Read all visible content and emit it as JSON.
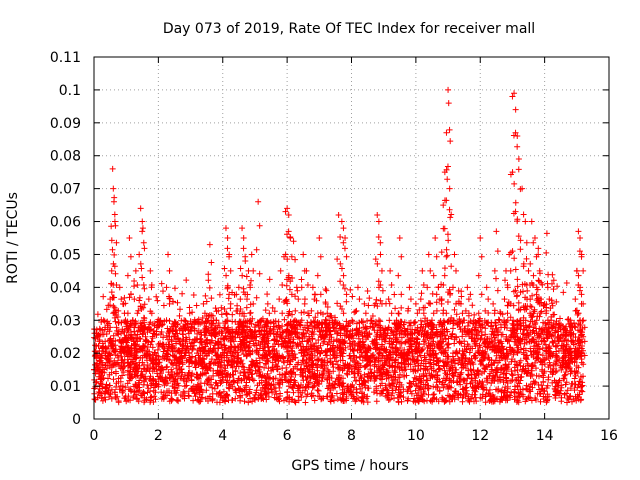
{
  "chart_data": {
    "type": "scatter",
    "title": "Day 073 of 2019, Rate Of TEC Index for receiver mall",
    "xlabel": "GPS time / hours",
    "ylabel": "ROTI / TECUs",
    "xlim": [
      0,
      16
    ],
    "ylim": [
      0,
      0.11
    ],
    "xticks": [
      0,
      2,
      4,
      6,
      8,
      10,
      12,
      14,
      16
    ],
    "xtick_labels": [
      "0",
      "2",
      "4",
      "6",
      "8",
      "10",
      "12",
      "14",
      "16"
    ],
    "yticks": [
      0,
      0.01,
      0.02,
      0.03,
      0.04,
      0.05,
      0.06,
      0.07,
      0.08,
      0.09,
      0.1,
      0.11
    ],
    "ytick_labels": [
      "0",
      "0.01",
      "0.02",
      "0.03",
      "0.04",
      "0.05",
      "0.06",
      "0.07",
      "0.08",
      "0.09",
      "0.1",
      "0.11"
    ],
    "grid": true,
    "marker": "+",
    "color": "#ff0000",
    "series": [
      {
        "name": "ROTI",
        "x": [
          0.05,
          0.12,
          0.2,
          0.3,
          0.45,
          0.55,
          0.58,
          0.6,
          0.62,
          0.65,
          0.8,
          0.9,
          1.0,
          1.1,
          1.2,
          1.3,
          1.45,
          1.5,
          1.52,
          1.55,
          1.6,
          1.75,
          1.9,
          2.1,
          2.3,
          2.5,
          2.6,
          2.8,
          3.0,
          3.2,
          3.4,
          3.55,
          3.6,
          3.8,
          4.0,
          4.1,
          4.15,
          4.2,
          4.3,
          4.5,
          4.6,
          4.65,
          4.7,
          4.8,
          4.9,
          5.1,
          5.2,
          5.4,
          5.6,
          5.8,
          5.95,
          6.0,
          6.05,
          6.1,
          6.2,
          6.3,
          6.5,
          6.6,
          6.8,
          7.0,
          7.2,
          7.4,
          7.6,
          7.7,
          7.75,
          7.8,
          8.0,
          8.2,
          8.4,
          8.6,
          8.8,
          8.85,
          8.9,
          9.0,
          9.2,
          9.4,
          9.5,
          9.6,
          9.8,
          10.0,
          10.2,
          10.4,
          10.5,
          10.6,
          10.7,
          10.8,
          10.85,
          10.9,
          10.95,
          11.0,
          11.02,
          11.05,
          11.2,
          11.4,
          11.6,
          11.8,
          12.0,
          12.2,
          12.4,
          12.5,
          12.6,
          12.8,
          12.9,
          13.0,
          13.05,
          13.1,
          13.15,
          13.2,
          13.3,
          13.4,
          13.5,
          13.6,
          13.7,
          13.8,
          14.0,
          14.1,
          14.2,
          14.4,
          14.6,
          14.8,
          15.0,
          15.05,
          15.1,
          15.15,
          15.2
        ],
        "values": [
          0.015,
          0.025,
          0.012,
          0.03,
          0.018,
          0.045,
          0.076,
          0.07,
          0.066,
          0.06,
          0.04,
          0.035,
          0.022,
          0.055,
          0.03,
          0.045,
          0.064,
          0.06,
          0.058,
          0.03,
          0.025,
          0.045,
          0.02,
          0.015,
          0.05,
          0.025,
          0.018,
          0.03,
          0.022,
          0.02,
          0.035,
          0.044,
          0.053,
          0.03,
          0.02,
          0.058,
          0.055,
          0.05,
          0.025,
          0.04,
          0.058,
          0.055,
          0.048,
          0.045,
          0.05,
          0.066,
          0.03,
          0.035,
          0.02,
          0.045,
          0.063,
          0.064,
          0.062,
          0.055,
          0.054,
          0.04,
          0.05,
          0.045,
          0.04,
          0.055,
          0.035,
          0.03,
          0.062,
          0.06,
          0.058,
          0.055,
          0.025,
          0.04,
          0.035,
          0.03,
          0.062,
          0.06,
          0.05,
          0.025,
          0.045,
          0.03,
          0.055,
          0.02,
          0.04,
          0.035,
          0.045,
          0.05,
          0.03,
          0.055,
          0.04,
          0.035,
          0.065,
          0.075,
          0.087,
          0.1,
          0.096,
          0.07,
          0.05,
          0.035,
          0.04,
          0.03,
          0.055,
          0.04,
          0.035,
          0.057,
          0.03,
          0.045,
          0.05,
          0.098,
          0.099,
          0.094,
          0.086,
          0.079,
          0.07,
          0.06,
          0.045,
          0.06,
          0.055,
          0.05,
          0.035,
          0.04,
          0.03,
          0.025,
          0.02,
          0.03,
          0.045,
          0.057,
          0.055,
          0.05,
          0.03
        ]
      }
    ],
    "background_cloud": {
      "x_range": [
        0,
        15.2
      ],
      "baseline_range": [
        0.005,
        0.03
      ],
      "point_count": 4200
    }
  }
}
